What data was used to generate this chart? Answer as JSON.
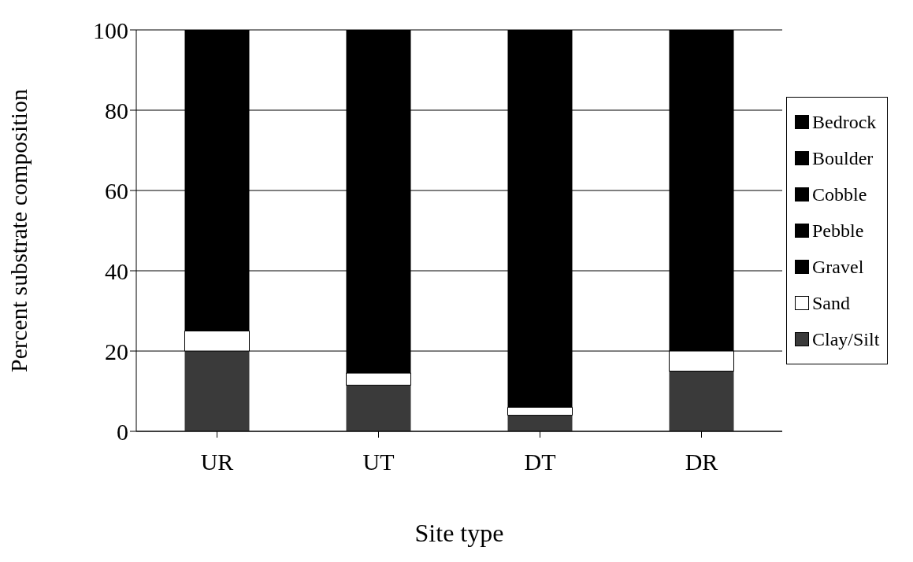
{
  "chart_data": {
    "type": "bar",
    "stacked": true,
    "xlabel": "Site type",
    "ylabel": "Percent substrate composition",
    "categories": [
      "UR",
      "UT",
      "DT",
      "DR"
    ],
    "series": [
      {
        "name": "Clay/Silt",
        "color": "#3a3a3a",
        "values": [
          20,
          11.5,
          4,
          15
        ]
      },
      {
        "name": "Sand",
        "color": "#ffffff",
        "values": [
          5,
          3,
          2,
          5
        ]
      },
      {
        "name": "Gravel",
        "color": "#000000",
        "values": [
          null,
          null,
          null,
          null
        ]
      },
      {
        "name": "Pebble",
        "color": "#000000",
        "values": [
          null,
          null,
          null,
          null
        ]
      },
      {
        "name": "Cobble",
        "color": "#000000",
        "values": [
          null,
          null,
          null,
          null
        ]
      },
      {
        "name": "Boulder",
        "color": "#000000",
        "values": [
          null,
          null,
          null,
          null
        ]
      },
      {
        "name": "Bedrock",
        "color": "#000000",
        "values": [
          75,
          85.5,
          94,
          80
        ]
      }
    ],
    "ylim": [
      0,
      100
    ],
    "yticks": [
      0,
      20,
      40,
      60,
      80,
      100
    ],
    "grid": "y",
    "legend": "right"
  }
}
